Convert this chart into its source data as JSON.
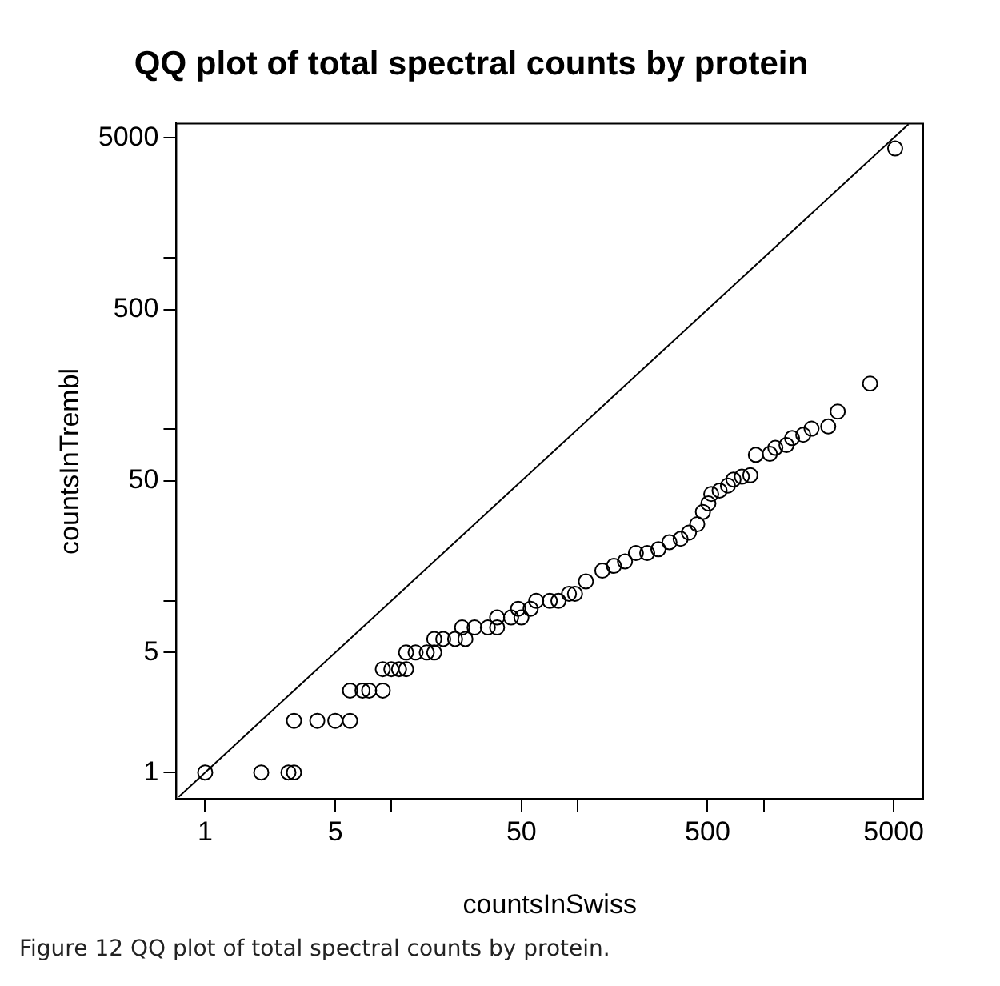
{
  "chart_data": {
    "type": "scatter",
    "title": "QQ plot of total spectral counts by protein",
    "xlabel": "countsInSwiss",
    "ylabel": "countsInTrembl",
    "log": "xy",
    "grid": false,
    "legend": false,
    "marker": "circle",
    "xlim": [
      0.71,
      7200
    ],
    "ylim": [
      0.72,
      6060
    ],
    "xticks": [
      1,
      5,
      {
        "value": 10,
        "label": null
      },
      50,
      {
        "value": 100,
        "label": null
      },
      500,
      {
        "value": 1000,
        "label": null
      },
      5000
    ],
    "yticks": [
      1,
      5,
      {
        "value": 10,
        "label": null
      },
      50,
      {
        "value": 100,
        "label": null
      },
      500,
      {
        "value": 1000,
        "label": null
      },
      5000
    ],
    "annotations": [
      "Figure 12 QQ plot of total spectral counts by protein."
    ],
    "series": [
      {
        "color": "#000000",
        "x": [
          1,
          2,
          2.8,
          3,
          3,
          4,
          5,
          6,
          6,
          7,
          7.6,
          9,
          9,
          10,
          11,
          12,
          12,
          13.5,
          15.5,
          17,
          17,
          19,
          22,
          25,
          24,
          28,
          33,
          37,
          37,
          44,
          50,
          48,
          56,
          60,
          71,
          79,
          90,
          97,
          111,
          136,
          157,
          180,
          206,
          237,
          272,
          312,
          358,
          397,
          440,
          472,
          505,
          523,
          580,
          643,
          689,
          764,
          848,
          908,
          1080,
          1156,
          1327,
          1422,
          1632,
          1809,
          2224,
          2501,
          3731,
          5090
        ],
        "values": [
          1,
          1,
          1,
          1,
          2,
          2,
          2,
          2,
          3,
          3,
          3,
          3,
          4,
          4,
          4,
          4,
          5,
          5,
          5,
          5,
          6,
          6,
          6,
          6,
          7,
          7,
          7,
          7,
          8,
          8,
          8,
          9,
          9,
          10,
          10,
          10,
          11,
          11,
          13,
          15,
          16,
          17,
          19,
          19,
          20,
          22,
          23,
          25,
          28,
          33,
          37,
          42,
          44,
          47,
          51,
          53,
          54,
          71,
          72,
          78,
          81,
          89,
          93,
          101,
          104,
          127,
          185,
          4335
        ]
      },
      {
        "type": "line",
        "color": "#000000",
        "line_style": "solid",
        "marker": "none",
        "x": [
          0.72,
          6000
        ],
        "values": [
          0.72,
          6000
        ]
      }
    ]
  }
}
